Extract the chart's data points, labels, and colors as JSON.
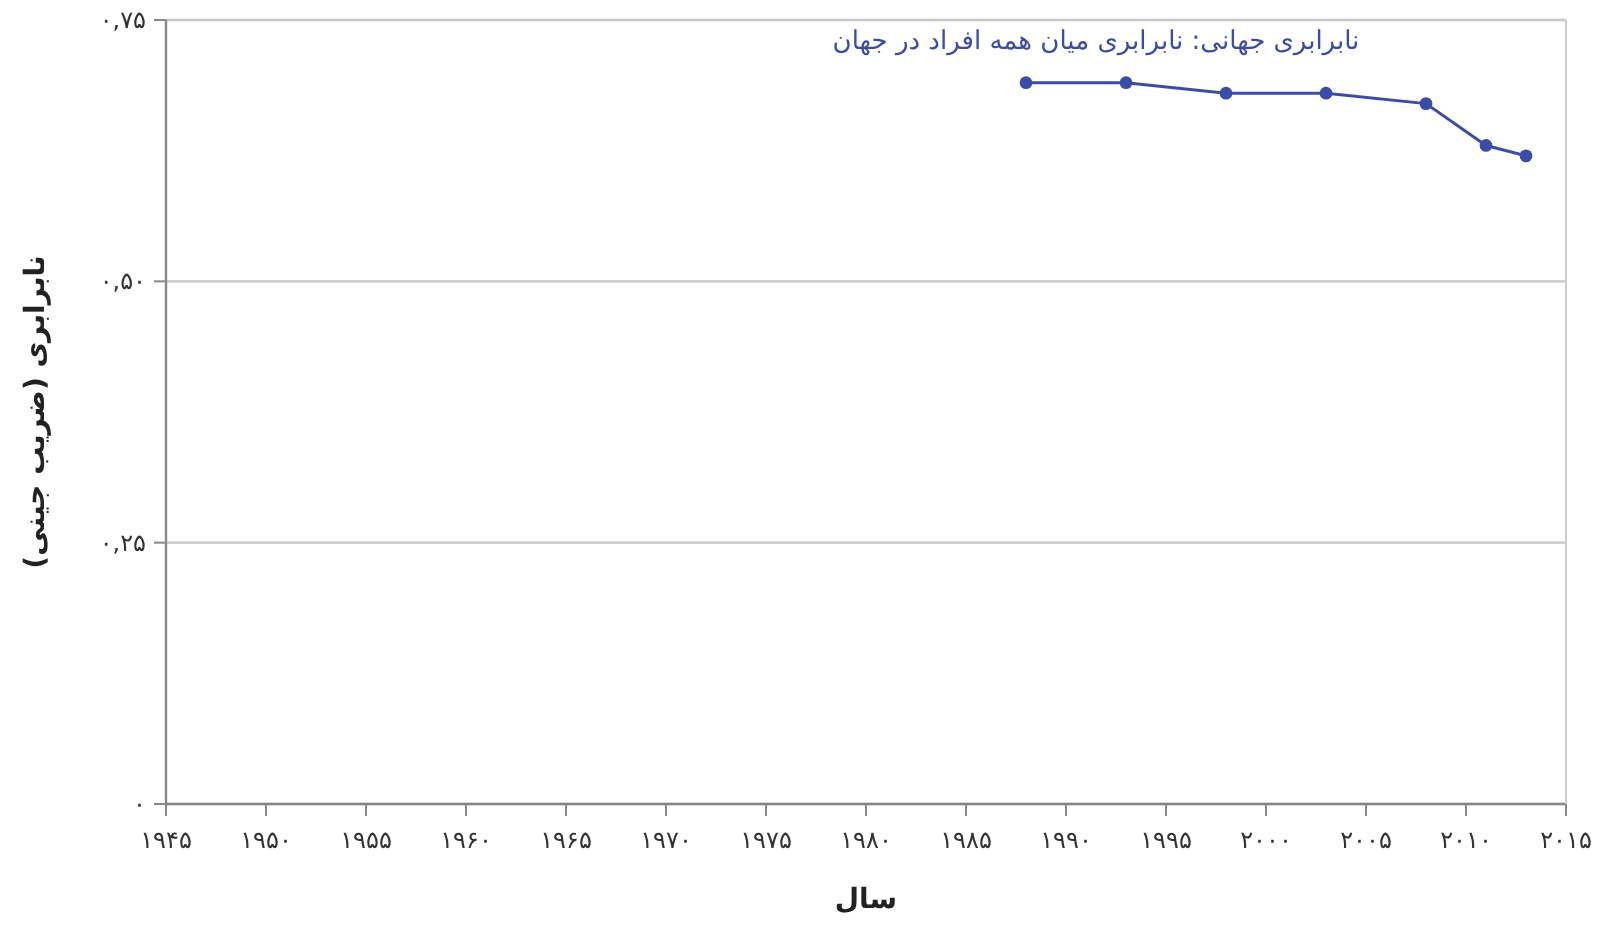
{
  "chart_data": {
    "type": "line",
    "xlabel": "سال",
    "ylabel": "نابرابری (ضریب جینی)",
    "x": [
      1988,
      1993,
      1998,
      2003,
      2008,
      2011,
      2013
    ],
    "series": [
      {
        "name": "نابرابری جهانی: نابرابری میان همه افراد در جهان",
        "color": "#3a4ca8",
        "values": [
          0.69,
          0.69,
          0.68,
          0.68,
          0.67,
          0.63,
          0.62
        ]
      }
    ],
    "xlim": [
      1945,
      2015
    ],
    "xticks": [
      {
        "value": 1945,
        "label": "۱۹۴۵"
      },
      {
        "value": 1950,
        "label": "۱۹۵۰"
      },
      {
        "value": 1955,
        "label": "۱۹۵۵"
      },
      {
        "value": 1960,
        "label": "۱۹۶۰"
      },
      {
        "value": 1965,
        "label": "۱۹۶۵"
      },
      {
        "value": 1970,
        "label": "۱۹۷۰"
      },
      {
        "value": 1975,
        "label": "۱۹۷۵"
      },
      {
        "value": 1980,
        "label": "۱۹۸۰"
      },
      {
        "value": 1985,
        "label": "۱۹۸۵"
      },
      {
        "value": 1990,
        "label": "۱۹۹۰"
      },
      {
        "value": 1995,
        "label": "۱۹۹۵"
      },
      {
        "value": 2000,
        "label": "۲۰۰۰"
      },
      {
        "value": 2005,
        "label": "۲۰۰۵"
      },
      {
        "value": 2010,
        "label": "۲۰۱۰"
      },
      {
        "value": 2015,
        "label": "۲۰۱۵"
      }
    ],
    "ylim": [
      0,
      0.75
    ],
    "yticks": [
      {
        "value": 0,
        "label": "۰"
      },
      {
        "value": 0.25,
        "label": "۰,۲۵"
      },
      {
        "value": 0.5,
        "label": "۰,۵۰"
      },
      {
        "value": 0.75,
        "label": "۰,۷۵"
      }
    ],
    "grid": "y",
    "marker": "circle",
    "line_style": "solid"
  }
}
